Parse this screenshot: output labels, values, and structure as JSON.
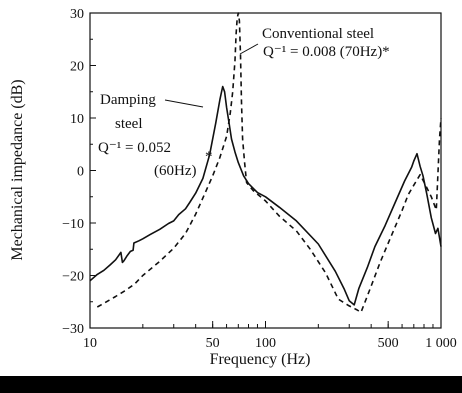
{
  "chart_data": {
    "type": "line",
    "xscale": "log",
    "xlabel": "Frequency (Hz)",
    "ylabel": "Mechanical impedance (dB)",
    "xlim": [
      10,
      1000
    ],
    "ylim": [
      -30,
      30
    ],
    "x_ticks": [
      {
        "value": 10,
        "label": "10"
      },
      {
        "value": 50,
        "label": "50"
      },
      {
        "value": 100,
        "label": "100"
      },
      {
        "value": 500,
        "label": "500"
      },
      {
        "value": 1000,
        "label": "1 000"
      }
    ],
    "y_ticks": [
      {
        "value": 30,
        "label": "30"
      },
      {
        "value": 20,
        "label": "20"
      },
      {
        "value": 10,
        "label": "10"
      },
      {
        "value": 0,
        "label": "0"
      },
      {
        "value": -10,
        "label": "−10"
      },
      {
        "value": -20,
        "label": "−20"
      },
      {
        "value": -30,
        "label": "−30"
      }
    ],
    "grid": false,
    "series": [
      {
        "name": "Damping steel",
        "style": "solid",
        "color": "#111111",
        "points": [
          [
            10,
            -21
          ],
          [
            11,
            -19.8
          ],
          [
            12,
            -19
          ],
          [
            13,
            -18
          ],
          [
            14,
            -17
          ],
          [
            15,
            -15.6
          ],
          [
            15.3,
            -17.5
          ],
          [
            15.6,
            -17.2
          ],
          [
            16.3,
            -16.2
          ],
          [
            17,
            -15.4
          ],
          [
            17.6,
            -15.2
          ],
          [
            17.8,
            -13.8
          ],
          [
            19,
            -13.4
          ],
          [
            20,
            -13
          ],
          [
            22,
            -12.2
          ],
          [
            25,
            -11.2
          ],
          [
            28,
            -10.1
          ],
          [
            30,
            -9.6
          ],
          [
            32,
            -8.4
          ],
          [
            35,
            -7.3
          ],
          [
            37,
            -6.1
          ],
          [
            40,
            -4.3
          ],
          [
            44,
            -1.5
          ],
          [
            48,
            3
          ],
          [
            52,
            9
          ],
          [
            55,
            13.5
          ],
          [
            57,
            16
          ],
          [
            58.5,
            15
          ],
          [
            60,
            12
          ],
          [
            62,
            9
          ],
          [
            64,
            6
          ],
          [
            67,
            3.5
          ],
          [
            70,
            1.5
          ],
          [
            75,
            -1
          ],
          [
            80,
            -2.5
          ],
          [
            90,
            -4.2
          ],
          [
            100,
            -5
          ],
          [
            120,
            -7
          ],
          [
            150,
            -9.6
          ],
          [
            200,
            -14
          ],
          [
            250,
            -19.2
          ],
          [
            280,
            -22.5
          ],
          [
            300,
            -24.8
          ],
          [
            320,
            -25.6
          ],
          [
            340,
            -22.5
          ],
          [
            380,
            -18.5
          ],
          [
            420,
            -14.5
          ],
          [
            480,
            -10.5
          ],
          [
            550,
            -6
          ],
          [
            620,
            -2
          ],
          [
            680,
            0.6
          ],
          [
            700,
            1.8
          ],
          [
            730,
            3.2
          ],
          [
            760,
            0.8
          ],
          [
            790,
            -1
          ],
          [
            830,
            -4.5
          ],
          [
            880,
            -9
          ],
          [
            930,
            -12
          ],
          [
            960,
            -11
          ],
          [
            1000,
            -14.5
          ]
        ]
      },
      {
        "name": "Conventional steel",
        "style": "dashed",
        "color": "#111111",
        "points": [
          [
            11,
            -26
          ],
          [
            12,
            -25.3
          ],
          [
            14,
            -24
          ],
          [
            16,
            -22.8
          ],
          [
            18,
            -21.6
          ],
          [
            20,
            -20
          ],
          [
            25,
            -17.3
          ],
          [
            30,
            -14.8
          ],
          [
            35,
            -12
          ],
          [
            40,
            -8.3
          ],
          [
            45,
            -4.5
          ],
          [
            50,
            -1
          ],
          [
            55,
            2.5
          ],
          [
            60,
            6.5
          ],
          [
            63,
            11
          ],
          [
            65,
            15
          ],
          [
            67,
            21
          ],
          [
            68,
            26
          ],
          [
            69,
            29
          ],
          [
            70,
            30
          ],
          [
            71,
            28.5
          ],
          [
            72,
            22
          ],
          [
            73,
            13
          ],
          [
            74,
            6
          ],
          [
            76,
            1.5
          ],
          [
            78,
            -2.3
          ],
          [
            85,
            -3.8
          ],
          [
            100,
            -5.8
          ],
          [
            120,
            -8.7
          ],
          [
            150,
            -11.5
          ],
          [
            180,
            -15
          ],
          [
            220,
            -19.5
          ],
          [
            260,
            -24.5
          ],
          [
            300,
            -25.8
          ],
          [
            330,
            -26.5
          ],
          [
            350,
            -27
          ],
          [
            400,
            -22
          ],
          [
            450,
            -17.5
          ],
          [
            520,
            -12.5
          ],
          [
            600,
            -7.6
          ],
          [
            650,
            -4.6
          ],
          [
            700,
            -2.8
          ],
          [
            760,
            -0.8
          ],
          [
            800,
            -2.2
          ],
          [
            880,
            -5
          ],
          [
            940,
            -7.5
          ],
          [
            980,
            6
          ],
          [
            1000,
            10
          ]
        ]
      }
    ],
    "annotations": {
      "conventional": {
        "lines": [
          "Conventional steel",
          "Q⁻¹ = 0.008 (70Hz)*"
        ]
      },
      "damping": {
        "lines": [
          "Damping",
          "steel",
          "Q⁻¹ = 0.052",
          "(60Hz)",
          "*"
        ]
      }
    }
  }
}
